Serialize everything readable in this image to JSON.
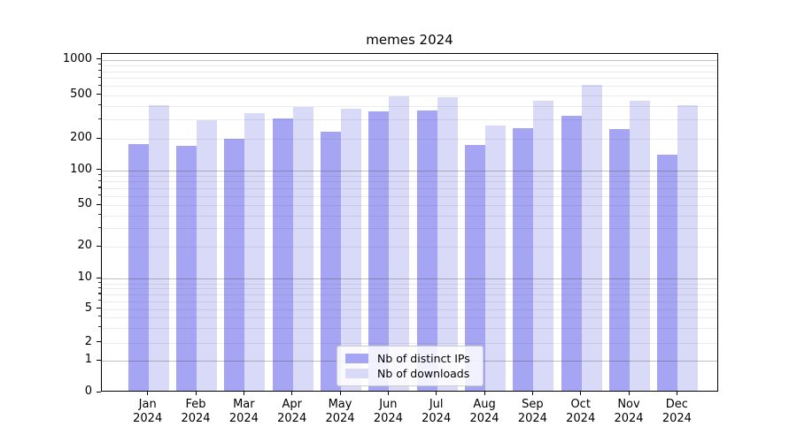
{
  "chart_data": {
    "type": "bar",
    "title": "memes 2024",
    "x": {
      "months": [
        "Jan",
        "Feb",
        "Mar",
        "Apr",
        "May",
        "Jun",
        "Jul",
        "Aug",
        "Sep",
        "Oct",
        "Nov",
        "Dec"
      ],
      "year": "2024"
    },
    "series": [
      {
        "name": "Nb of distinct IPs",
        "color": "#a5a5f3",
        "values": [
          172,
          164,
          192,
          293,
          225,
          340,
          350,
          168,
          240,
          315,
          238,
          135
        ]
      },
      {
        "name": "Nb of downloads",
        "color": "#d9d9f8",
        "values": [
          390,
          285,
          330,
          375,
          360,
          470,
          460,
          255,
          430,
          590,
          430,
          390
        ]
      }
    ],
    "yscale": "symlog",
    "yticks": [
      0,
      1,
      2,
      5,
      10,
      20,
      50,
      100,
      200,
      500,
      1000
    ],
    "ylim": [
      0,
      1185
    ],
    "grid": true,
    "legend": {
      "position": "lower center"
    }
  }
}
